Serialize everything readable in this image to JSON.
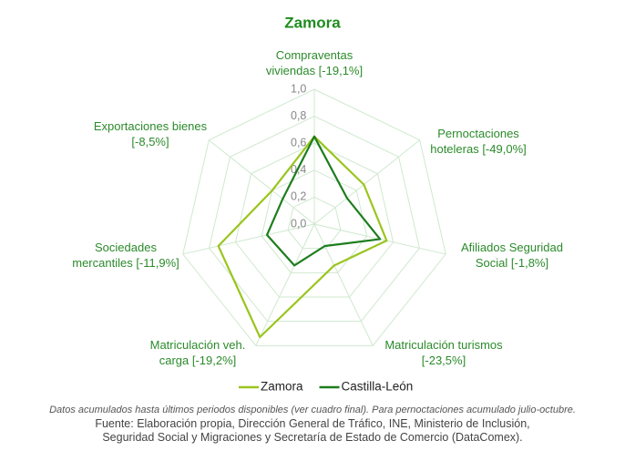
{
  "chart_data": {
    "type": "radar",
    "title": "Zamora",
    "categories": [
      "Compraventas\nviviendas [-19,1%]",
      "Pernoctaciones\nhoteleras [-49,0%]",
      "Afiliados Seguridad\nSocial [-1,8%]",
      "Matriculación turismos\n[-23,5%]",
      "Matriculación veh.\ncarga [-19,2%]",
      "Sociedades\nmercantiles [-11,9%]",
      "Exportaciones bienes\n[-8,5%]"
    ],
    "series": [
      {
        "name": "Zamora",
        "color": "#9ac51e",
        "values": [
          0.65,
          0.47,
          0.55,
          0.34,
          0.93,
          0.73,
          0.4
        ]
      },
      {
        "name": "Castilla-León",
        "color": "#1d7d1d",
        "values": [
          0.65,
          0.31,
          0.5,
          0.18,
          0.34,
          0.36,
          0.3
        ]
      }
    ],
    "ylim": [
      0,
      1
    ],
    "yticks": [
      {
        "value": 0,
        "label": "0,0"
      },
      {
        "value": 0.2,
        "label": "0,2"
      },
      {
        "value": 0.4,
        "label": "0,4"
      },
      {
        "value": 0.6,
        "label": "0,6"
      },
      {
        "value": 0.8,
        "label": "0,8"
      },
      {
        "value": 1,
        "label": "1,0"
      }
    ],
    "grid": true,
    "legend": "bottom",
    "note": "Datos acumulados hasta últimos periodos disponibles (ver cuadro final). Para pernoctaciones acumulado julio-octubre.",
    "source": "Fuente: Elaboración propia, Dirección General de Tráfico, INE, Ministerio de Inclusión, Seguridad Social y Migraciones y Secretaría de Estado de Comercio (DataComex)."
  }
}
